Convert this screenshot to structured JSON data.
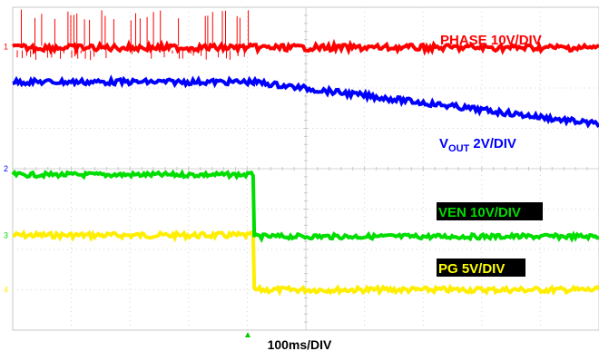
{
  "chart_data": {
    "type": "line",
    "title": "",
    "xlabel": "100ms/DIV",
    "grid": true,
    "divisions": {
      "x": 10,
      "y": 8
    },
    "series": [
      {
        "name": "PHASE 10V/DIV",
        "color": "#ff0000",
        "level_div": 7.0,
        "description_points": [
          [
            0,
            7.0
          ],
          [
            4.15,
            7.0
          ],
          [
            10,
            7.0
          ]
        ]
      },
      {
        "name": "VOUT 2V/DIV",
        "label_main": "V",
        "label_sub": "OUT",
        "label_rest": " 2V/DIV",
        "color": "#0000ff",
        "points": [
          [
            0,
            6.15
          ],
          [
            4.1,
            6.15
          ],
          [
            10,
            5.1
          ]
        ]
      },
      {
        "name": "VEN 10V/DIV",
        "color": "#00dd00",
        "label_bg": "#000000",
        "points": [
          [
            0,
            3.85
          ],
          [
            4.1,
            3.85
          ],
          [
            4.12,
            2.32
          ],
          [
            10,
            2.32
          ]
        ]
      },
      {
        "name": "PG 5V/DIV",
        "color": "#ffee00",
        "label_bg": "#000000",
        "label_color": "#ffff00",
        "points": [
          [
            0,
            2.35
          ],
          [
            4.1,
            2.35
          ],
          [
            4.12,
            1.0
          ],
          [
            10,
            1.0
          ]
        ]
      }
    ],
    "markers": [
      {
        "char": "1",
        "color": "#ff0000"
      },
      {
        "char": "2",
        "color": "#0000ff"
      },
      {
        "char": "3",
        "color": "#00dd00"
      },
      {
        "char": "4",
        "color": "#ffee00"
      }
    ],
    "trigger_marker_color": "#00cc00"
  }
}
